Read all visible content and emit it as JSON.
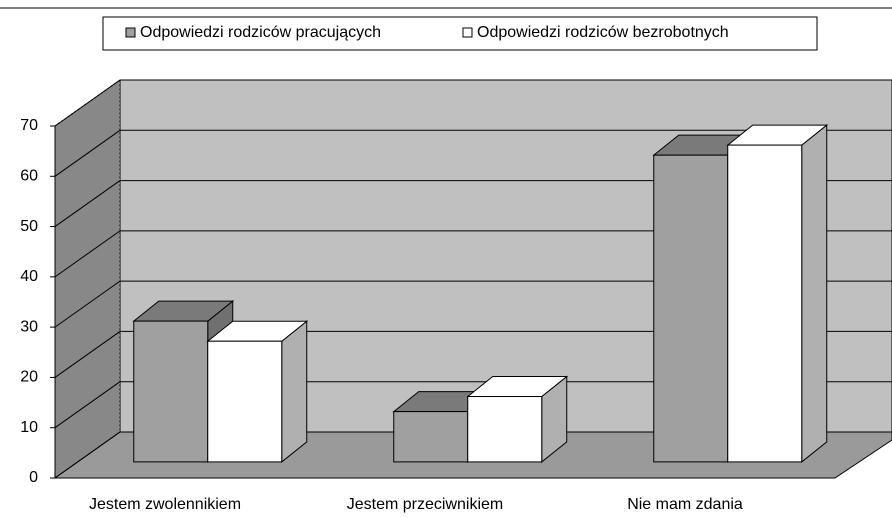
{
  "chart_data": {
    "type": "bar3d",
    "ylabel": "%",
    "categories": [
      "Jestem zwolennikiem",
      "Jestem przeciwnikiem",
      "Nie mam zdania"
    ],
    "series": [
      {
        "name": "Odpowiedzi rodziców pracujących",
        "color": "#a0a0a0",
        "values": [
          28,
          10,
          61
        ]
      },
      {
        "name": "Odpowiedzi rodziców bezrobotnych",
        "color": "#ffffff",
        "values": [
          24,
          13,
          63
        ]
      }
    ],
    "ylim": [
      0,
      70
    ],
    "yticks": [
      0,
      10,
      20,
      30,
      40,
      50,
      60,
      70
    ],
    "grid": true,
    "legend": "top"
  }
}
